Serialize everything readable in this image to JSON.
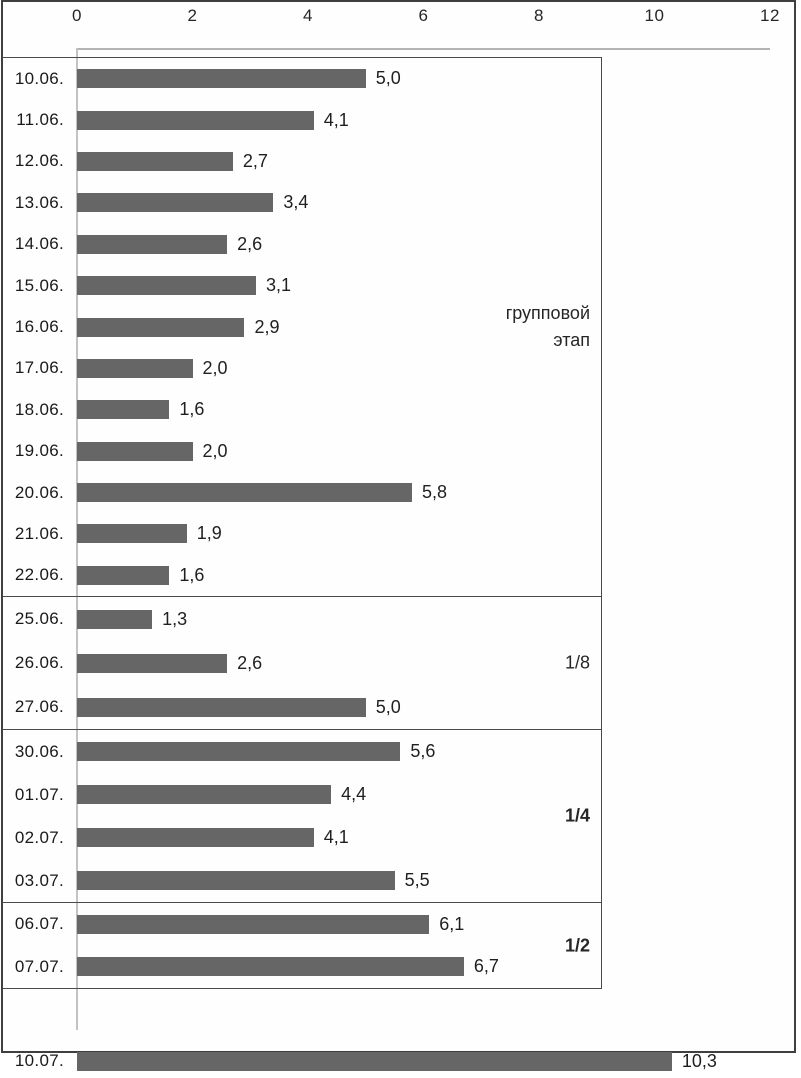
{
  "chart_data": {
    "type": "bar",
    "orientation": "horizontal",
    "axis_position": "top",
    "grid": false,
    "xlim": [
      0,
      12
    ],
    "x_ticks": [
      "0",
      "2",
      "4",
      "6",
      "8",
      "10",
      "12"
    ],
    "value_label_format": "comma-decimal",
    "colors": {
      "bar": "#666666",
      "box_border": "#4a4a4a",
      "axis_line": "#b3b3b3",
      "text": "#1f1f1f"
    },
    "sections": [
      {
        "name": "group-stage",
        "label": "групповой этап",
        "rows": [
          {
            "date": "10.06.",
            "value": 5.0,
            "label": "5,0"
          },
          {
            "date": "11.06.",
            "value": 4.1,
            "label": "4,1"
          },
          {
            "date": "12.06.",
            "value": 2.7,
            "label": "2,7"
          },
          {
            "date": "13.06.",
            "value": 3.4,
            "label": "3,4"
          },
          {
            "date": "14.06.",
            "value": 2.6,
            "label": "2,6"
          },
          {
            "date": "15.06.",
            "value": 3.1,
            "label": "3,1"
          },
          {
            "date": "16.06.",
            "value": 2.9,
            "label": "2,9"
          },
          {
            "date": "17.06.",
            "value": 2.0,
            "label": "2,0"
          },
          {
            "date": "18.06.",
            "value": 1.6,
            "label": "1,6"
          },
          {
            "date": "19.06.",
            "value": 2.0,
            "label": "2,0"
          },
          {
            "date": "20.06.",
            "value": 5.8,
            "label": "5,8"
          },
          {
            "date": "21.06.",
            "value": 1.9,
            "label": "1,9"
          },
          {
            "date": "22.06.",
            "value": 1.6,
            "label": "1,6"
          }
        ]
      },
      {
        "name": "round-of-16",
        "label": "1/8",
        "rows": [
          {
            "date": "25.06.",
            "value": 1.3,
            "label": "1,3"
          },
          {
            "date": "26.06.",
            "value": 2.6,
            "label": "2,6"
          },
          {
            "date": "27.06.",
            "value": 5.0,
            "label": "5,0"
          }
        ]
      },
      {
        "name": "quarter-finals",
        "label": "1/4",
        "rows": [
          {
            "date": "30.06.",
            "value": 5.6,
            "label": "5,6"
          },
          {
            "date": "01.07.",
            "value": 4.4,
            "label": "4,4"
          },
          {
            "date": "02.07.",
            "value": 4.1,
            "label": "4,1"
          },
          {
            "date": "03.07.",
            "value": 5.5,
            "label": "5,5"
          }
        ]
      },
      {
        "name": "semi-finals",
        "label": "1/2",
        "rows": [
          {
            "date": "06.07.",
            "value": 6.1,
            "label": "6,1"
          },
          {
            "date": "07.07.",
            "value": 6.7,
            "label": "6,7"
          }
        ]
      },
      {
        "name": "final",
        "label": "",
        "rows": [
          {
            "date": "10.07.",
            "value": 10.3,
            "label": "10,3"
          }
        ]
      }
    ]
  }
}
